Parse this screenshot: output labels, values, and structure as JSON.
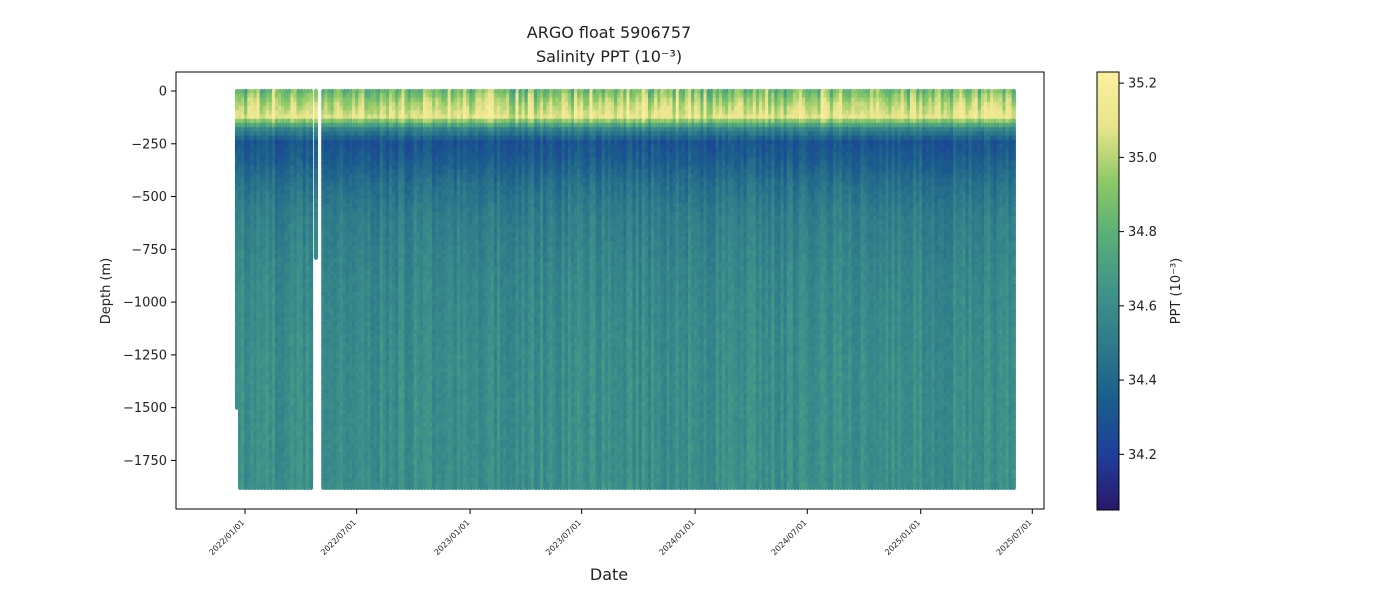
{
  "chart_data": {
    "type": "scatter",
    "title": "ARGO float 5906757",
    "subtitle": "Salinity PPT (10⁻³)",
    "xlabel": "Date",
    "ylabel": "Depth (m)",
    "colorbar_label": "PPT (10⁻³)",
    "xlim": [
      "2021-09-11",
      "2025-07-20"
    ],
    "ylim": [
      -1980,
      90
    ],
    "x_ticks": [
      "2022/01/01",
      "2022/07/01",
      "2023/01/01",
      "2023/07/01",
      "2024/01/01",
      "2024/07/01",
      "2025/01/01",
      "2025/07/01"
    ],
    "y_ticks": [
      0,
      -250,
      -500,
      -750,
      -1000,
      -1250,
      -1500,
      -1750
    ],
    "colorbar_range": [
      34.05,
      35.23
    ],
    "colorbar_ticks": [
      35.2,
      35.0,
      34.8,
      34.6,
      34.4,
      34.2
    ],
    "colormap": [
      "#2a186c",
      "#1f3e99",
      "#1a5d8c",
      "#2e7a8a",
      "#3f948a",
      "#59ae78",
      "#8cc966",
      "#e9e48c",
      "#fbf0a0"
    ],
    "profiles": {
      "first_date": "2021-12-19",
      "last_date": "2025-06-01",
      "cycle_days": 5,
      "first_profile_max_depth": -1500,
      "gap_start": "2022-04-20",
      "gap_end": "2022-05-04",
      "short_profile_date": "2022-04-26",
      "short_profile_max_depth": -790,
      "typical_max_depth": -1880
    },
    "salinity_profile": [
      {
        "depth": 0,
        "value": 34.85
      },
      {
        "depth": -60,
        "value": 35.0
      },
      {
        "depth": -130,
        "value": 35.1
      },
      {
        "depth": -190,
        "value": 34.55
      },
      {
        "depth": -250,
        "value": 34.3
      },
      {
        "depth": -330,
        "value": 34.35
      },
      {
        "depth": -450,
        "value": 34.45
      },
      {
        "depth": -600,
        "value": 34.52
      },
      {
        "depth": -900,
        "value": 34.57
      },
      {
        "depth": -1300,
        "value": 34.6
      },
      {
        "depth": -1880,
        "value": 34.61
      }
    ]
  }
}
